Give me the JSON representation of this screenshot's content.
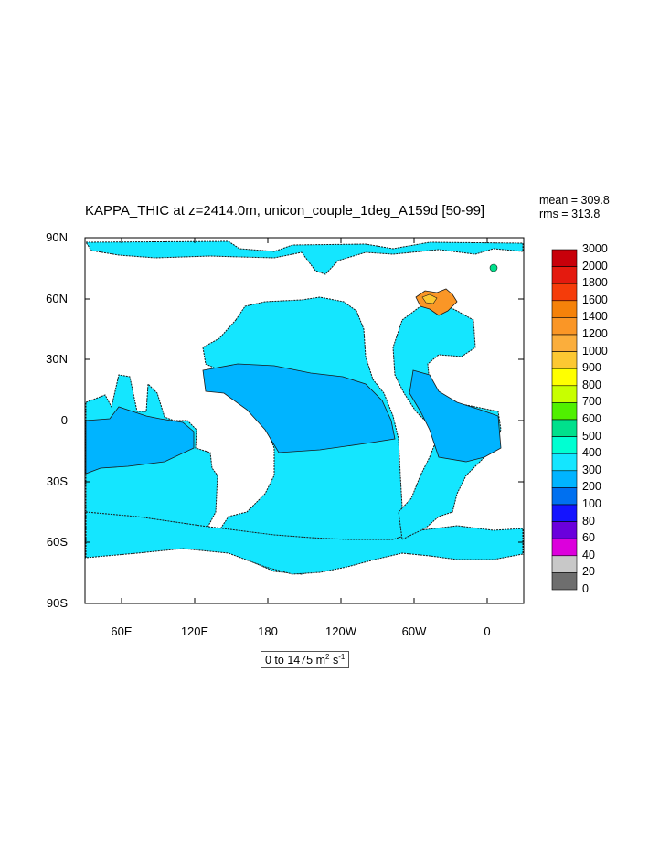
{
  "title": "KAPPA_THIC at z=2414.0m, unicon_couple_1deg_A159d [50-99]",
  "stats": {
    "mean": "mean = 309.8",
    "rms": "rms = 313.8"
  },
  "y_axis_labels": [
    "90N",
    "60N",
    "30N",
    "0",
    "30S",
    "60S",
    "90S"
  ],
  "x_axis_labels": [
    "60E",
    "120E",
    "180",
    "120W",
    "60W",
    "0"
  ],
  "range_label": {
    "main": "0 to 1475 m",
    "sup1": "2",
    "mid": " s",
    "sup2": "-1"
  },
  "colorbar": {
    "levels": [
      "3000",
      "2000",
      "1800",
      "1600",
      "1400",
      "1200",
      "1000",
      "900",
      "800",
      "700",
      "600",
      "500",
      "400",
      "300",
      "200",
      "100",
      "80",
      "60",
      "40",
      "20",
      "0"
    ],
    "colors": [
      "#c8000a",
      "#e41a0f",
      "#f53c0a",
      "#f5820a",
      "#fa9626",
      "#fbae3c",
      "#fcc832",
      "#ffff00",
      "#c8ff00",
      "#50f000",
      "#00e08c",
      "#00ffd2",
      "#14e6ff",
      "#00b4ff",
      "#0070f0",
      "#1414ff",
      "#6a00dc",
      "#dc00dc",
      "#c8c8c8",
      "#6e6e6e"
    ]
  },
  "palette": {
    "ocean_main": "#14e6ff",
    "ocean_equatorial": "#00b4ff",
    "land": "#ffffff"
  }
}
